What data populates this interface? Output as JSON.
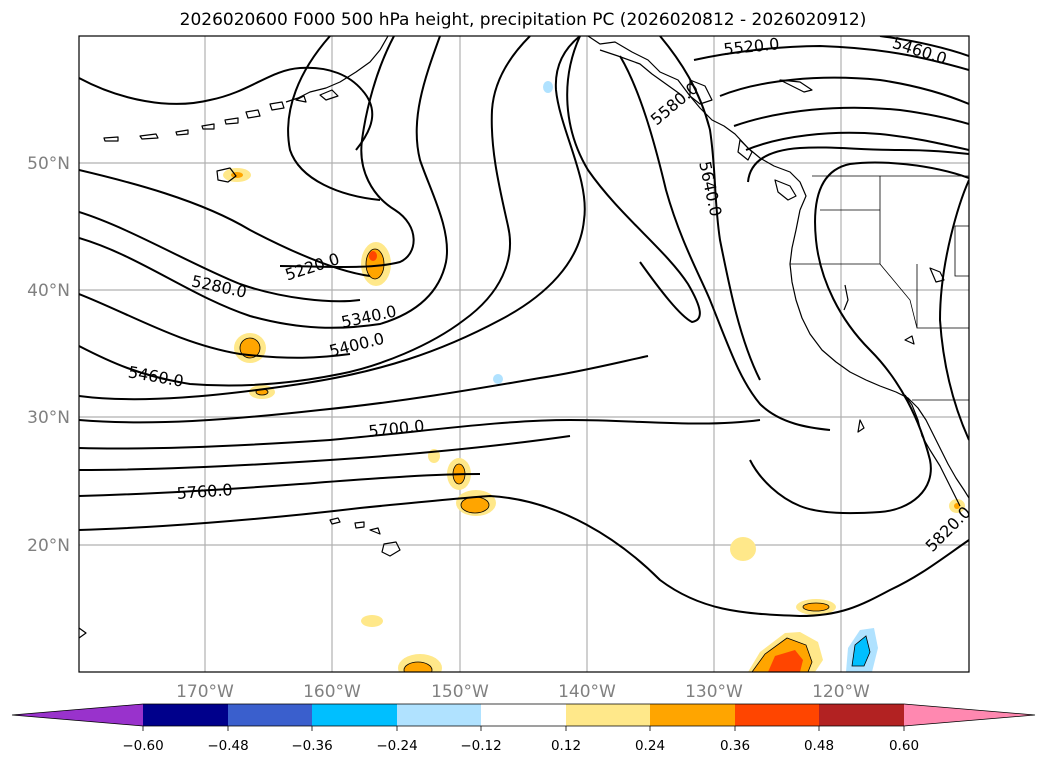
{
  "title": "2026020600 F000 500 hPa height, precipitation PC (2026020812 - 2026020912)",
  "lat_labels": [
    "50°N",
    "40°N",
    "30°N",
    "20°N"
  ],
  "lon_labels": [
    "170°W",
    "160°W",
    "150°W",
    "140°W",
    "130°W",
    "120°W"
  ],
  "contour_labels": [
    "5520.0",
    "5460.0",
    "5580.0",
    "5640.0",
    "5220.0",
    "5280.0",
    "5340.0",
    "5400.0",
    "5460.0",
    "5700.0",
    "5760.0",
    "5820.0"
  ],
  "colorbar": {
    "ticks": [
      "−0.60",
      "−0.48",
      "−0.36",
      "−0.24",
      "−0.12",
      "0.12",
      "0.24",
      "0.36",
      "0.48",
      "0.60"
    ],
    "colors": {
      "under": "#9932cc",
      "c1": "#00008b",
      "c2": "#3a5fcd",
      "c3": "#00bfff",
      "c4": "#b0e2ff",
      "c5": "#ffffff",
      "c6": "#ffe88a",
      "c7": "#ffa500",
      "c8": "#ff4500",
      "c9": "#b22222",
      "over": "#ff88b0"
    }
  }
}
